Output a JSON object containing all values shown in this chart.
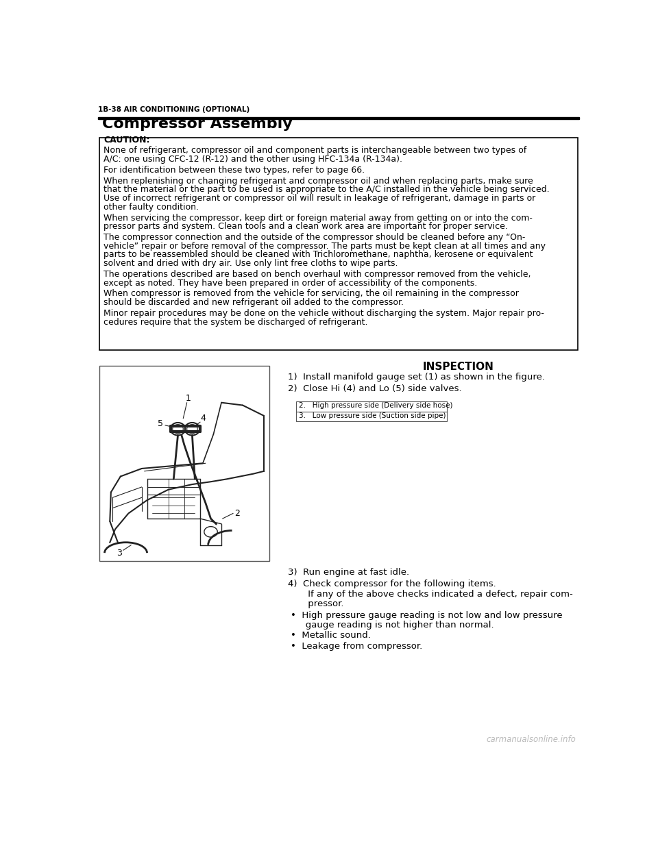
{
  "page_bg": "#ffffff",
  "header_text": "1B-38 AIR CONDITIONING (OPTIONAL)",
  "section_title": "Compressor Assembly",
  "caution_title": "CAUTION:",
  "caution_paragraphs": [
    "None of refrigerant, compressor oil and component parts is interchangeable between two types of\nA/C: one using CFC-12 (R-12) and the other using HFC-134a (R-134a).",
    "For identification between these two types, refer to page 66.",
    "When replenishing or changing refrigerant and compressor oil and when replacing parts, make sure\nthat the material or the part to be used is appropriate to the A/C installed in the vehicle being serviced.\nUse of incorrect refrigerant or compressor oil will result in leakage of refrigerant, damage in parts or\nother faulty condition.",
    "When servicing the compressor, keep dirt or foreign material away from getting on or into the com-\npressor parts and system. Clean tools and a clean work area are important for proper service.",
    "The compressor connection and the outside of the compressor should be cleaned before any “On-\nvehicle” repair or before removal of the compressor. The parts must be kept clean at all times and any\nparts to be reassembled should be cleaned with Trichloromethane, naphtha, kerosene or equivalent\nsolvent and dried with dry air. Use only lint free cloths to wipe parts.",
    "The operations described are based on bench overhaul with compressor removed from the vehicle,\nexcept as noted. They have been prepared in order of accessibility of the components.",
    "When compressor is removed from the vehicle for servicing, the oil remaining in the compressor\nshould be discarded and new refrigerant oil added to the compressor.",
    "Minor repair procedures may be done on the vehicle without discharging the system. Major repair pro-\ncedures require that the system be discharged of refrigerant."
  ],
  "inspection_title": "INSPECTION",
  "step1": "1)  Install manifold gauge set (1) as shown in the figure.",
  "step2": "2)  Close Hi (4) and Lo (5) side valves.",
  "step3": "3)  Run engine at fast idle.",
  "step4_line1": "4)  Check compressor for the following items.",
  "step4_line2": "     If any of the above checks indicated a defect, repair com-",
  "step4_line3": "     pressor.",
  "step4_bullet1_a": "•  High pressure gauge reading is not low and low pressure",
  "step4_bullet1_b": "   gauge reading is not higher than normal.",
  "step4_bullet2": "•  Metallic sound.",
  "step4_bullet3": "•  Leakage from compressor.",
  "legend_row1": "2.   High pressure side (Delivery side hose)",
  "legend_row2": "3.   Low pressure side (Suction side pipe)",
  "watermark": "carmanualsonline.info",
  "label1": "1",
  "label2": "2",
  "label3": "3",
  "label4": "4",
  "label5": "5"
}
